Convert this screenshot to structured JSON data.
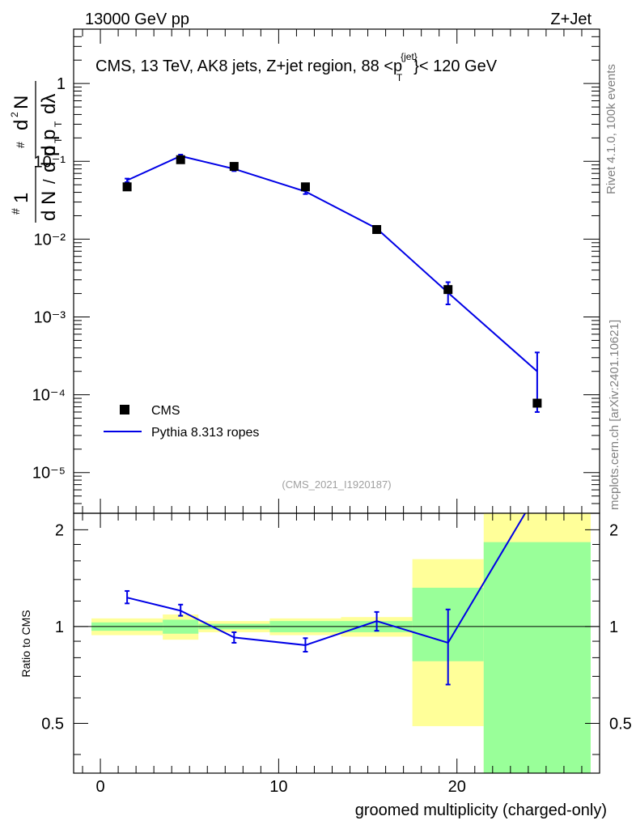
{
  "header": {
    "left": "13000 GeV pp",
    "right": "Z+Jet"
  },
  "side_labels": {
    "rivet": "Rivet 4.1.0,  100k events",
    "mcplots": "mcplots.cern.ch [arXiv:2401.10621]"
  },
  "colors": {
    "data": "#000000",
    "mc": "#0000e6",
    "band_outer": "#ffff99",
    "band_inner": "#99ff99"
  },
  "chart_data": [
    {
      "type": "line",
      "panel": "main",
      "title_main": "CMS, 13 TeV, AK8 jets, Z+jet region, 88 <p",
      "title_sup": "{jet}",
      "title_sub": "T",
      "title_tail": "}< 120 GeV",
      "analysis_id": "(CMS_2021_I1920187)",
      "ylabel": "1/N dN/dp_T d²N/dp_T dλ",
      "ylog": true,
      "ylim": [
        3e-06,
        5
      ],
      "xlim": [
        -1.5,
        28
      ],
      "ytick_labels": [
        "1",
        "10⁻¹",
        "10⁻²",
        "10⁻³",
        "10⁻⁴",
        "10⁻⁵"
      ],
      "legend": {
        "placement": "bottom-left",
        "data_label": "CMS",
        "mc_label": "Pythia 8.313 ropes"
      },
      "series": [
        {
          "name": "CMS",
          "style": "markers",
          "points": [
            {
              "x": 1.5,
              "y": 0.047
            },
            {
              "x": 4.5,
              "y": 0.105
            },
            {
              "x": 7.5,
              "y": 0.086
            },
            {
              "x": 11.5,
              "y": 0.047
            },
            {
              "x": 15.5,
              "y": 0.0133
            },
            {
              "x": 19.5,
              "y": 0.00225
            },
            {
              "x": 24.5,
              "y": 7.8e-05
            }
          ]
        },
        {
          "name": "Pythia 8.313 ropes",
          "style": "line",
          "points": [
            {
              "x": 1.5,
              "y": 0.057,
              "err_lo": 0.054,
              "err_hi": 0.06
            },
            {
              "x": 4.5,
              "y": 0.117,
              "err_lo": 0.112,
              "err_hi": 0.122
            },
            {
              "x": 7.5,
              "y": 0.08,
              "err_lo": 0.075,
              "err_hi": 0.085
            },
            {
              "x": 11.5,
              "y": 0.041,
              "err_lo": 0.038,
              "err_hi": 0.044
            },
            {
              "x": 15.5,
              "y": 0.0137,
              "err_lo": 0.0128,
              "err_hi": 0.0147
            },
            {
              "x": 19.5,
              "y": 0.00205,
              "err_lo": 0.00145,
              "err_hi": 0.0028
            },
            {
              "x": 24.5,
              "y": 0.0002,
              "err_lo": 6e-05,
              "err_hi": 0.00035
            }
          ]
        }
      ]
    },
    {
      "type": "line",
      "panel": "ratio",
      "ylabel": "Ratio to CMS",
      "xlabel": "groomed multiplicity (charged-only)",
      "ylim": [
        0.35,
        2.25
      ],
      "xlim": [
        -1.5,
        28
      ],
      "xtick_labels": [
        "0",
        "10",
        "20"
      ],
      "ytick_labels": [
        "0.5",
        "1",
        "2"
      ],
      "bands": [
        {
          "x0": -0.5,
          "x1": 3.5,
          "outer": [
            0.94,
            1.06
          ],
          "inner": [
            0.97,
            1.03
          ]
        },
        {
          "x0": 3.5,
          "x1": 5.5,
          "outer": [
            0.91,
            1.09
          ],
          "inner": [
            0.95,
            1.05
          ]
        },
        {
          "x0": 5.5,
          "x1": 9.5,
          "outer": [
            0.96,
            1.04
          ],
          "inner": [
            0.98,
            1.02
          ]
        },
        {
          "x0": 9.5,
          "x1": 13.5,
          "outer": [
            0.94,
            1.06
          ],
          "inner": [
            0.96,
            1.04
          ]
        },
        {
          "x0": 13.5,
          "x1": 17.5,
          "outer": [
            0.93,
            1.07
          ],
          "inner": [
            0.96,
            1.04
          ]
        },
        {
          "x0": 17.5,
          "x1": 21.5,
          "outer": [
            0.49,
            1.62
          ],
          "inner": [
            0.78,
            1.32
          ]
        },
        {
          "x0": 21.5,
          "x1": 27.5,
          "outer": [
            0.35,
            2.25
          ],
          "inner": [
            0.35,
            1.83
          ]
        }
      ],
      "series": [
        {
          "name": "Pythia 8.313 ropes / CMS",
          "points": [
            {
              "x": 1.5,
              "y": 1.23,
              "err_lo": 1.18,
              "err_hi": 1.29
            },
            {
              "x": 4.5,
              "y": 1.12,
              "err_lo": 1.08,
              "err_hi": 1.17
            },
            {
              "x": 7.5,
              "y": 0.925,
              "err_lo": 0.89,
              "err_hi": 0.96
            },
            {
              "x": 11.5,
              "y": 0.875,
              "err_lo": 0.835,
              "err_hi": 0.92
            },
            {
              "x": 15.5,
              "y": 1.04,
              "err_lo": 0.97,
              "err_hi": 1.11
            },
            {
              "x": 19.5,
              "y": 0.89,
              "err_lo": 0.66,
              "err_hi": 1.13
            },
            {
              "x": 24.5,
              "y": 2.6
            }
          ]
        }
      ]
    }
  ]
}
